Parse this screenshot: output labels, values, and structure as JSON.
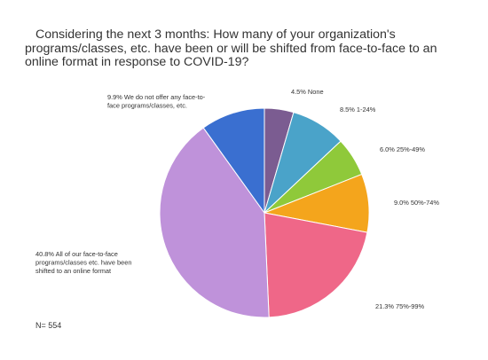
{
  "title": "Considering the next 3 months: How many of your organization's programs/classes, etc. have been or will be shifted from face-to-face to an online format in response to COVID-19?",
  "note": "N= 554",
  "chart_data": {
    "type": "pie",
    "title": "Considering the next 3 months: How many of your organization's programs/classes, etc. have been or will be shifted from face-to-face to an online format in response to COVID-19?",
    "start": "12 o'clock",
    "direction": "clockwise",
    "slices": [
      {
        "name": "None",
        "value": 4.5,
        "label_lines": [
          "4.5% None"
        ],
        "color": "#7b5c91"
      },
      {
        "name": "1-24%",
        "value": 8.5,
        "label_lines": [
          "8.5% 1-24%"
        ],
        "color": "#4aa3c9"
      },
      {
        "name": "25%-49%",
        "value": 6.0,
        "label_lines": [
          "6.0% 25%-49%"
        ],
        "color": "#8fc93a"
      },
      {
        "name": "50%-74%",
        "value": 9.0,
        "label_lines": [
          "9.0% 50%-74%"
        ],
        "color": "#f4a51c"
      },
      {
        "name": "75%-99%",
        "value": 21.3,
        "label_lines": [
          "21.3% 75%-99%"
        ],
        "color": "#ef6788"
      },
      {
        "name": "All of our face-to-face programs/classes etc. have been shifted to an online format",
        "value": 40.8,
        "label_lines": [
          "40.8% All of our face-to-face",
          "programs/classes etc. have been",
          "shifted to an online format"
        ],
        "color": "#bf92da"
      },
      {
        "name": "We do not offer any face-to-face programs/classes, etc.",
        "value": 9.9,
        "label_lines": [
          "9.9% We do not offer any face-to-",
          "face programs/classes, etc."
        ],
        "color": "#3a6fd0"
      }
    ]
  }
}
